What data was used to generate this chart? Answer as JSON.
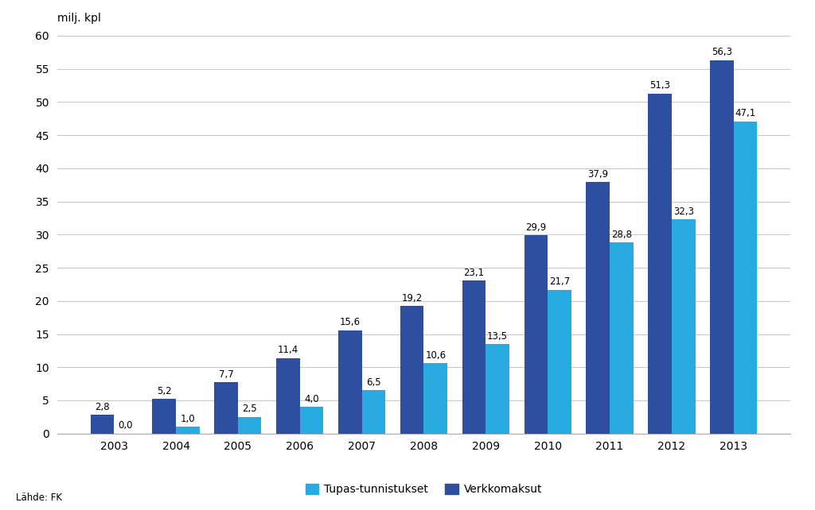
{
  "years": [
    "2003",
    "2004",
    "2005",
    "2006",
    "2007",
    "2008",
    "2009",
    "2010",
    "2011",
    "2012",
    "2013"
  ],
  "tupas": [
    0.0,
    1.0,
    2.5,
    4.0,
    6.5,
    10.6,
    13.5,
    21.7,
    28.8,
    32.3,
    47.1
  ],
  "verkko": [
    2.8,
    5.2,
    7.7,
    11.4,
    15.6,
    19.2,
    23.1,
    29.9,
    37.9,
    51.3,
    56.3
  ],
  "tupas_labels": [
    "0,0",
    "1,0",
    "2,5",
    "4,0",
    "6,5",
    "10,6",
    "13,5",
    "21,7",
    "28,8",
    "32,3",
    "47,1"
  ],
  "verkko_labels": [
    "2,8",
    "5,2",
    "7,7",
    "11,4",
    "15,6",
    "19,2",
    "23,1",
    "29,9",
    "37,9",
    "51,3",
    "56,3"
  ],
  "tupas_color": "#29ABE2",
  "verkko_color": "#2E4EA0",
  "ylabel": "milj. kpl",
  "ylim": [
    0,
    60
  ],
  "yticks": [
    0,
    5,
    10,
    15,
    20,
    25,
    30,
    35,
    40,
    45,
    50,
    55,
    60
  ],
  "legend_tupas": "Tupas-tunnistukset",
  "legend_verkko": "Verkkomaksut",
  "source_text": "Lähde: FK",
  "bar_width": 0.38,
  "background_color": "#FFFFFF",
  "grid_color": "#C8C8C8",
  "label_fontsize": 8.5,
  "axis_fontsize": 10,
  "legend_fontsize": 10,
  "ylabel_fontsize": 10
}
